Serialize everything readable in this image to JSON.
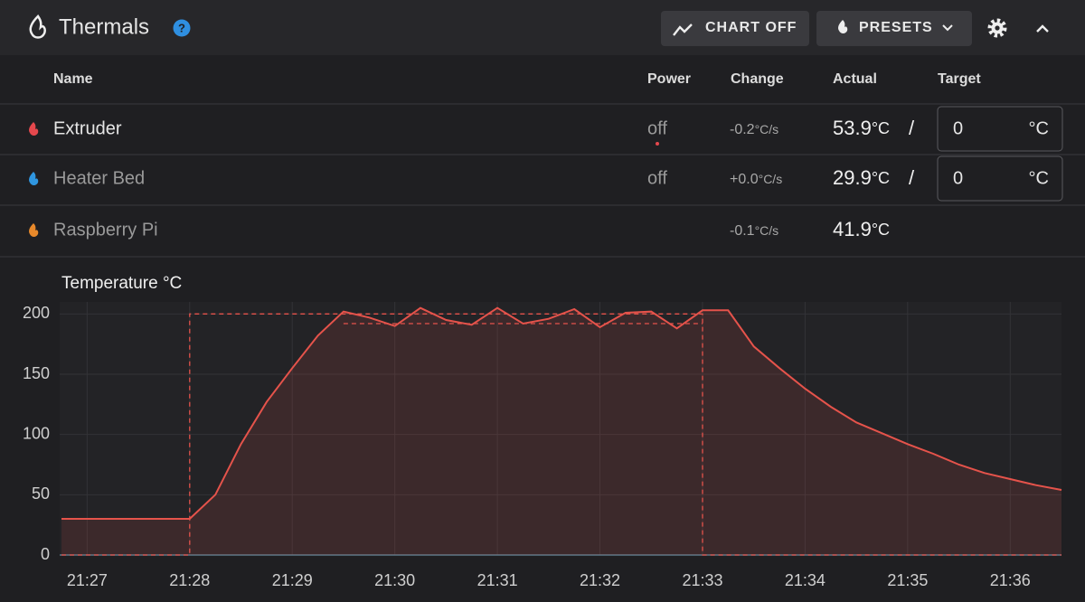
{
  "header": {
    "title": "Thermals",
    "buttons": [
      "CHART OFF",
      "PRESETS"
    ]
  },
  "table": {
    "columns": [
      "Name",
      "Power",
      "Change",
      "Actual",
      "Target"
    ],
    "separator": "/",
    "rows": [
      {
        "name": "Extruder",
        "icon_color": "#e5484d",
        "power": "off",
        "change": "-0.2",
        "change_unit": "°C/s",
        "actual": "53.9",
        "actual_unit": "°C",
        "target": "0",
        "target_unit": "°C"
      },
      {
        "name": "Heater Bed",
        "icon_color": "#2f96e0",
        "power": "off",
        "change": "+0.0",
        "change_unit": "°C/s",
        "actual": "29.9",
        "actual_unit": "°C",
        "target": "0",
        "target_unit": "°C"
      },
      {
        "name": "Raspberry Pi",
        "icon_color": "#e8892b",
        "change": "-0.1",
        "change_unit": "°C/s",
        "actual": "41.9",
        "actual_unit": "°C"
      }
    ]
  },
  "chart_data": {
    "type": "line",
    "y_label": "Temperature °C",
    "xlim": [
      "21:26:45",
      "21:36:30"
    ],
    "xticks": [
      "21:27",
      "21:28",
      "21:29",
      "21:30",
      "21:31",
      "21:32",
      "21:33",
      "21:34",
      "21:35",
      "21:36"
    ],
    "ylim": [
      0,
      210
    ],
    "yticks": [
      0,
      50,
      100,
      150,
      200
    ],
    "grid": true,
    "series": [
      {
        "color": "#e5534b",
        "fill": true,
        "dashed": false,
        "x": [
          "21:26:45",
          "21:27:00",
          "21:27:15",
          "21:27:30",
          "21:27:45",
          "21:28:00",
          "21:28:15",
          "21:28:30",
          "21:28:45",
          "21:29:00",
          "21:29:15",
          "21:29:30",
          "21:29:45",
          "21:30:00",
          "21:30:15",
          "21:30:30",
          "21:30:45",
          "21:31:00",
          "21:31:15",
          "21:31:30",
          "21:31:45",
          "21:32:00",
          "21:32:15",
          "21:32:30",
          "21:32:45",
          "21:33:00",
          "21:33:15",
          "21:33:30",
          "21:33:45",
          "21:34:00",
          "21:34:15",
          "21:34:30",
          "21:34:45",
          "21:35:00",
          "21:35:15",
          "21:35:30",
          "21:35:45",
          "21:36:00",
          "21:36:15",
          "21:36:30"
        ],
        "values": [
          30,
          30,
          30,
          30,
          30,
          30,
          50,
          92,
          127,
          155,
          182,
          202,
          197,
          190,
          205,
          195,
          191,
          205,
          192,
          196,
          204,
          189,
          201,
          202,
          188,
          203,
          203,
          173,
          155,
          138,
          123,
          110,
          101,
          92,
          84,
          75,
          68,
          63,
          58,
          54
        ]
      },
      {
        "color": "#e5534b",
        "fill": false,
        "dashed": true,
        "x": [
          "21:26:45",
          "21:28:00",
          "21:28:00",
          "21:33:00",
          "21:33:00",
          "21:36:30"
        ],
        "values": [
          0,
          0,
          200,
          200,
          0,
          0
        ]
      },
      {
        "color": "#e5534b",
        "fill": false,
        "dashed": true,
        "x": [
          "21:29:30",
          "21:33:00"
        ],
        "values": [
          192,
          192
        ]
      }
    ]
  }
}
